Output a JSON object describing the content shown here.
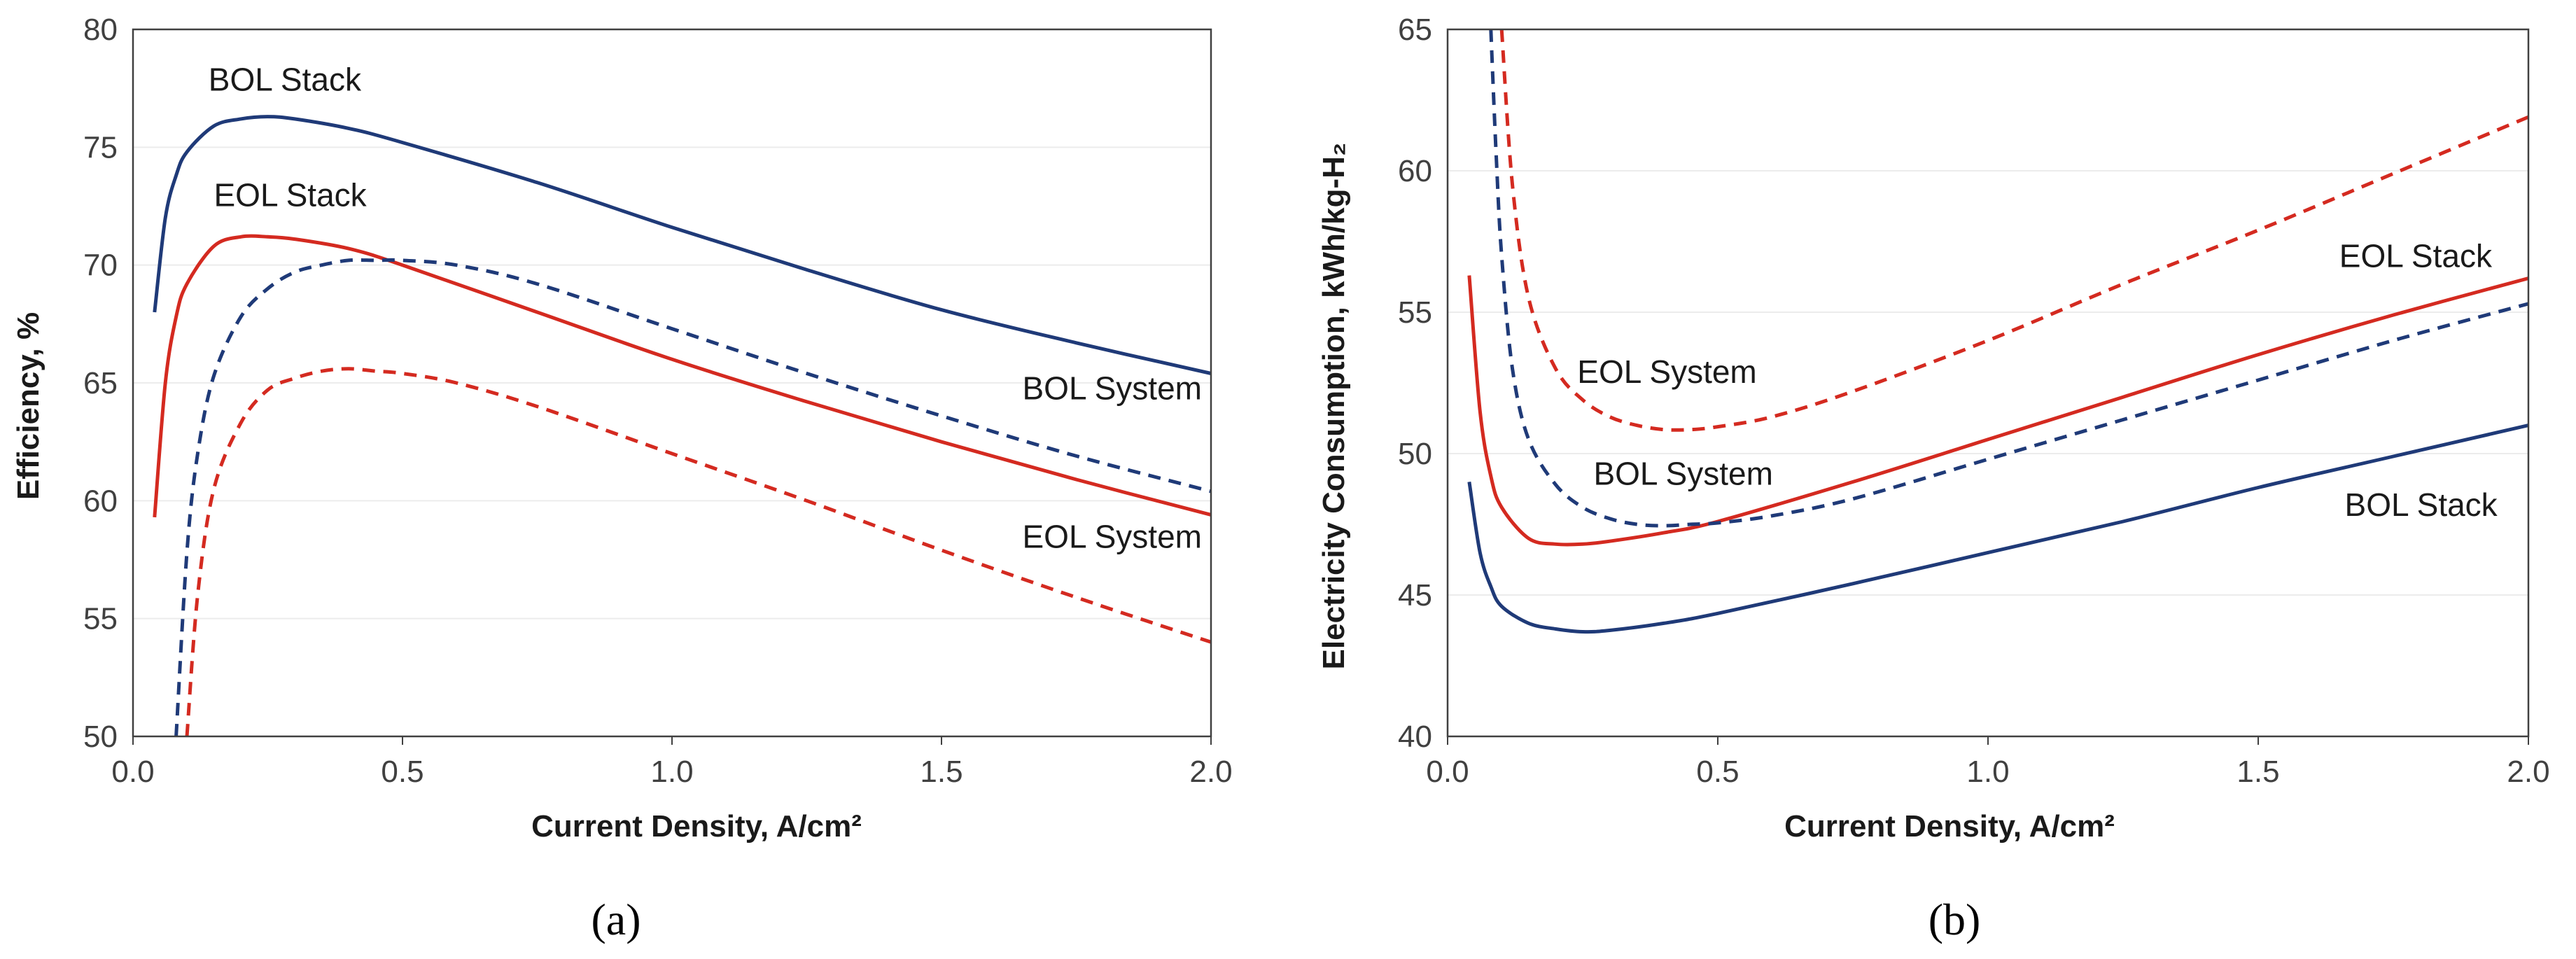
{
  "chart_data": [
    {
      "type": "line",
      "panel_label": "(a)",
      "xlabel": "Current Density, A/cm²",
      "ylabel": "Efficiency, %",
      "xlim": [
        0.0,
        2.0
      ],
      "ylim": [
        50,
        80
      ],
      "xticks": [
        "0.0",
        "0.5",
        "1.0",
        "1.5",
        "2.0"
      ],
      "yticks": [
        "50",
        "55",
        "60",
        "65",
        "70",
        "75",
        "80"
      ],
      "grid": "horizontal",
      "series": [
        {
          "name": "BOL Stack",
          "color": "#1f3a78",
          "dash": "solid",
          "x": [
            0.04,
            0.06,
            0.08,
            0.1,
            0.15,
            0.2,
            0.25,
            0.3,
            0.4,
            0.5,
            0.75,
            1.0,
            1.25,
            1.5,
            1.75,
            2.0
          ],
          "y": [
            68.0,
            72.0,
            73.8,
            74.8,
            75.9,
            76.2,
            76.3,
            76.2,
            75.8,
            75.2,
            73.5,
            71.6,
            69.8,
            68.1,
            66.7,
            65.4
          ]
        },
        {
          "name": "EOL Stack",
          "color": "#d42a20",
          "dash": "solid",
          "x": [
            0.04,
            0.06,
            0.08,
            0.1,
            0.15,
            0.2,
            0.25,
            0.3,
            0.4,
            0.5,
            0.75,
            1.0,
            1.25,
            1.5,
            1.75,
            2.0
          ],
          "y": [
            59.3,
            65.0,
            67.8,
            69.2,
            70.8,
            71.2,
            71.2,
            71.1,
            70.7,
            70.0,
            68.0,
            66.0,
            64.2,
            62.5,
            60.9,
            59.4
          ]
        },
        {
          "name": "BOL System",
          "color": "#1f3a78",
          "dash": "dashed",
          "x": [
            0.08,
            0.1,
            0.12,
            0.15,
            0.2,
            0.25,
            0.3,
            0.35,
            0.4,
            0.45,
            0.5,
            0.6,
            0.75,
            1.0,
            1.25,
            1.5,
            1.75,
            2.0
          ],
          "y": [
            50.0,
            57.8,
            62.0,
            65.3,
            67.8,
            69.0,
            69.7,
            70.0,
            70.2,
            70.2,
            70.2,
            70.0,
            69.2,
            67.3,
            65.4,
            63.6,
            61.9,
            60.4
          ]
        },
        {
          "name": "EOL System",
          "color": "#d42a20",
          "dash": "dashed",
          "x": [
            0.1,
            0.12,
            0.15,
            0.2,
            0.25,
            0.3,
            0.35,
            0.4,
            0.45,
            0.5,
            0.6,
            0.75,
            1.0,
            1.25,
            1.5,
            1.75,
            2.0
          ],
          "y": [
            50.0,
            56.0,
            60.5,
            63.3,
            64.7,
            65.2,
            65.5,
            65.6,
            65.5,
            65.4,
            65.0,
            64.0,
            62.0,
            60.0,
            57.9,
            55.9,
            54.0
          ]
        }
      ],
      "annotations": [
        {
          "text": "BOL Stack",
          "x": 0.14,
          "y": 77.4
        },
        {
          "text": "EOL Stack",
          "x": 0.15,
          "y": 72.5
        },
        {
          "text": "BOL System",
          "x": 1.65,
          "y": 64.3
        },
        {
          "text": "EOL System",
          "x": 1.65,
          "y": 58.0
        }
      ]
    },
    {
      "type": "line",
      "panel_label": "(b)",
      "xlabel": "Current Density, A/cm²",
      "ylabel": "Electricity Consumption, kWh/kg-H₂",
      "xlim": [
        0.0,
        2.0
      ],
      "ylim": [
        40,
        65
      ],
      "xticks": [
        "0.0",
        "0.5",
        "1.0",
        "1.5",
        "2.0"
      ],
      "yticks": [
        "40",
        "45",
        "50",
        "55",
        "60",
        "65"
      ],
      "grid": "horizontal",
      "series": [
        {
          "name": "BOL Stack",
          "color": "#1f3a78",
          "dash": "solid",
          "x": [
            0.04,
            0.06,
            0.08,
            0.1,
            0.15,
            0.2,
            0.25,
            0.3,
            0.4,
            0.5,
            0.75,
            1.0,
            1.25,
            1.5,
            1.75,
            2.0
          ],
          "y": [
            49.0,
            46.5,
            45.3,
            44.6,
            44.0,
            43.8,
            43.7,
            43.75,
            44.0,
            44.35,
            45.4,
            46.5,
            47.6,
            48.8,
            49.9,
            51.0
          ]
        },
        {
          "name": "EOL Stack",
          "color": "#d42a20",
          "dash": "solid",
          "x": [
            0.04,
            0.06,
            0.08,
            0.1,
            0.15,
            0.2,
            0.25,
            0.3,
            0.4,
            0.5,
            0.75,
            1.0,
            1.25,
            1.5,
            1.75,
            2.0
          ],
          "y": [
            56.3,
            51.5,
            49.2,
            48.1,
            47.0,
            46.8,
            46.8,
            46.9,
            47.2,
            47.6,
            49.0,
            50.5,
            52.0,
            53.5,
            54.9,
            56.2
          ]
        },
        {
          "name": "BOL System",
          "color": "#1f3a78",
          "dash": "dashed",
          "x": [
            0.08,
            0.09,
            0.1,
            0.12,
            0.15,
            0.2,
            0.25,
            0.3,
            0.35,
            0.4,
            0.45,
            0.5,
            0.6,
            0.75,
            1.0,
            1.25,
            1.5,
            1.75,
            2.0
          ],
          "y": [
            65.0,
            60.5,
            57.0,
            53.0,
            50.5,
            48.9,
            48.1,
            47.7,
            47.5,
            47.45,
            47.5,
            47.55,
            47.8,
            48.4,
            49.8,
            51.2,
            52.6,
            54.0,
            55.3
          ]
        },
        {
          "name": "EOL System",
          "color": "#d42a20",
          "dash": "dashed",
          "x": [
            0.1,
            0.12,
            0.15,
            0.2,
            0.25,
            0.3,
            0.35,
            0.4,
            0.45,
            0.5,
            0.6,
            0.75,
            1.0,
            1.25,
            1.5,
            1.75,
            2.0
          ],
          "y": [
            65.0,
            59.5,
            55.5,
            53.0,
            51.9,
            51.3,
            51.0,
            50.85,
            50.85,
            50.95,
            51.3,
            52.2,
            54.0,
            56.0,
            57.9,
            59.9,
            61.9
          ]
        }
      ],
      "annotations": [
        {
          "text": "EOL Stack",
          "x": 1.65,
          "y": 56.6
        },
        {
          "text": "EOL System",
          "x": 0.24,
          "y": 52.5
        },
        {
          "text": "BOL System",
          "x": 0.27,
          "y": 48.9
        },
        {
          "text": "BOL Stack",
          "x": 1.66,
          "y": 47.8
        }
      ]
    }
  ]
}
